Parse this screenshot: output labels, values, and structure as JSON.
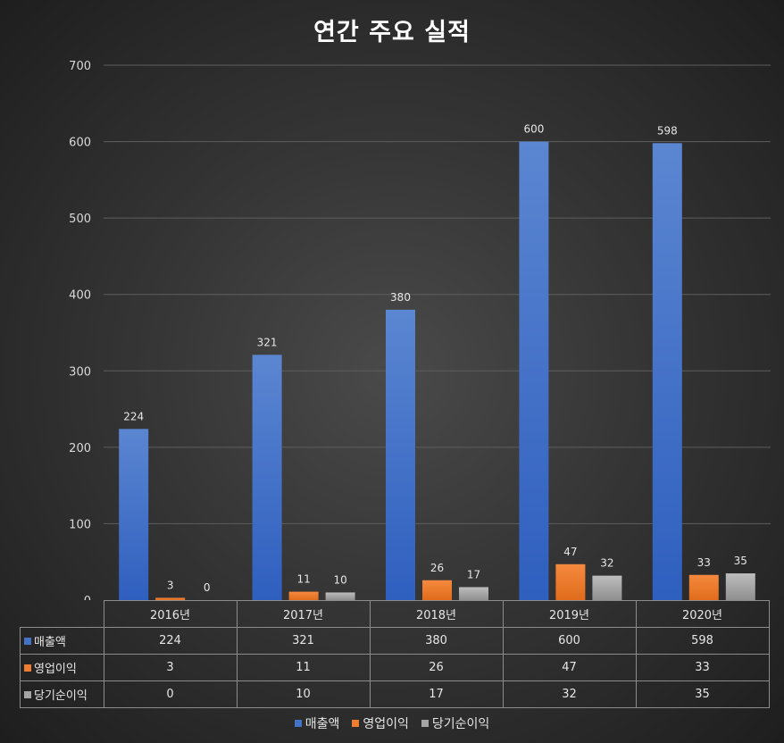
{
  "chart_data": {
    "type": "bar",
    "title": "연간 주요 실적",
    "categories": [
      "2016년",
      "2017년",
      "2018년",
      "2019년",
      "2020년"
    ],
    "series": [
      {
        "name": "매출액",
        "values": [
          224,
          321,
          380,
          600,
          598
        ],
        "color": "#4472c4"
      },
      {
        "name": "영업이익",
        "values": [
          3,
          11,
          26,
          47,
          33
        ],
        "color": "#ed7d31"
      },
      {
        "name": "당기순이익",
        "values": [
          0,
          10,
          17,
          32,
          35
        ],
        "color": "#a5a5a5"
      }
    ],
    "ylim": [
      0,
      700
    ],
    "yticks": [
      "0",
      "100",
      "200",
      "300",
      "400",
      "500",
      "600",
      "700"
    ],
    "grid": true,
    "legend": "bottom",
    "data_table": true
  }
}
